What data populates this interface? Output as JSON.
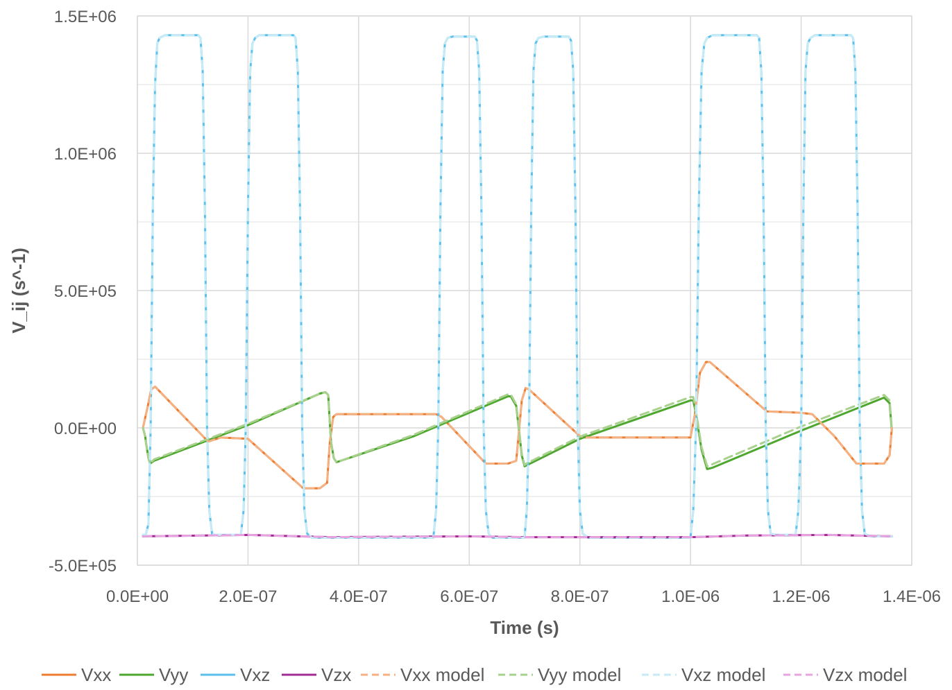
{
  "chart_data": {
    "type": "line",
    "title": "",
    "xlabel": "Time (s)",
    "ylabel": "V_ij (s^-1)",
    "xlim": [
      0,
      1.4e-06
    ],
    "ylim": [
      -500000,
      1500000
    ],
    "x_ticks": [
      "0.0E+00",
      "2.0E-07",
      "4.0E-07",
      "6.0E-07",
      "8.0E-07",
      "1.0E-06",
      "1.2E-06",
      "1.4E-06"
    ],
    "y_ticks": [
      "-5.0E+05",
      "0.0E+00",
      "5.0E+05",
      "1.0E+06",
      "1.5E+06"
    ],
    "grid": true,
    "legend_position": "bottom",
    "series": [
      {
        "name": "Vxx",
        "color": "#ED7D31",
        "dash": false,
        "x": [
          1e-08,
          1.9e-08,
          2.5e-08,
          3.2e-08,
          1.28e-07,
          1.5e-07,
          2e-07,
          3e-07,
          3.3e-07,
          3.43e-07,
          3.48e-07,
          3.54e-07,
          3.6e-07,
          4e-07,
          5e-07,
          5.4e-07,
          5.5e-07,
          6.3e-07,
          6.5e-07,
          6.7e-07,
          6.85e-07,
          6.95e-07,
          7.02e-07,
          7.08e-07,
          8e-07,
          8.1e-07,
          1e-06,
          1.008e-06,
          1.017e-06,
          1.028e-06,
          1.035e-06,
          1.138e-06,
          1.2e-06,
          1.22e-06,
          1.26e-06,
          1.3e-06,
          1.35e-06,
          1.36e-06,
          1.362e-06,
          1.364e-06
        ],
        "y": [
          0,
          80000,
          140000,
          150000,
          -50000,
          -35000,
          -40000,
          -220000,
          -220000,
          -200000,
          -50000,
          40000,
          50000,
          50000,
          50000,
          50000,
          40000,
          -130000,
          -130000,
          -130000,
          -120000,
          100000,
          145000,
          140000,
          -30000,
          -35000,
          -35000,
          50000,
          200000,
          240000,
          240000,
          60000,
          55000,
          50000,
          -30000,
          -130000,
          -130000,
          -100000,
          -50000,
          0
        ]
      },
      {
        "name": "Vyy",
        "color": "#4EA72E",
        "dash": false,
        "x": [
          1e-08,
          1.4e-08,
          1.6e-08,
          2e-08,
          2.3e-08,
          3e-08,
          2e-07,
          3.3e-07,
          3.4e-07,
          3.45e-07,
          3.5e-07,
          3.55e-07,
          3.6e-07,
          5e-07,
          6.7e-07,
          6.75e-07,
          6.85e-07,
          6.95e-07,
          7e-07,
          7.05e-07,
          8e-07,
          1e-06,
          1.005e-06,
          1.01e-06,
          1.02e-06,
          1.03e-06,
          1.04e-06,
          1.2e-06,
          1.35e-06,
          1.36e-06,
          1.362e-06,
          1.364e-06
        ],
        "y": [
          0,
          -30000,
          -60000,
          -110000,
          -130000,
          -120000,
          10000,
          125000,
          130000,
          120000,
          -50000,
          -110000,
          -125000,
          -30000,
          115000,
          115000,
          80000,
          -100000,
          -140000,
          -135000,
          -40000,
          100000,
          100000,
          50000,
          -80000,
          -150000,
          -145000,
          -10000,
          110000,
          90000,
          40000,
          -10000
        ]
      },
      {
        "name": "Vxz",
        "color": "#5BC0EB",
        "dash": false,
        "x": [
          1e-08,
          1.5e-08,
          2e-08,
          2.4e-08,
          2.8e-08,
          3.2e-08,
          3.6e-08,
          4e-08,
          5e-08,
          1.1e-07,
          1.14e-07,
          1.18e-07,
          1.22e-07,
          1.26e-07,
          1.3e-07,
          1.35e-07,
          1.4e-07,
          1.87e-07,
          1.92e-07,
          1.96e-07,
          2e-07,
          2.04e-07,
          2.08e-07,
          2.13e-07,
          2.2e-07,
          2.82e-07,
          2.86e-07,
          2.9e-07,
          2.94e-07,
          2.98e-07,
          3.02e-07,
          3.07e-07,
          3.15e-07,
          5.35e-07,
          5.4e-07,
          5.44e-07,
          5.48e-07,
          5.52e-07,
          5.56e-07,
          5.61e-07,
          5.7e-07,
          6.1e-07,
          6.14e-07,
          6.18e-07,
          6.22e-07,
          6.26e-07,
          6.3e-07,
          6.35e-07,
          6.42e-07,
          7e-07,
          7.04e-07,
          7.08e-07,
          7.12e-07,
          7.16e-07,
          7.2e-07,
          7.25e-07,
          7.35e-07,
          7.8e-07,
          7.84e-07,
          7.88e-07,
          7.92e-07,
          7.96e-07,
          8e-07,
          8.05e-07,
          8.15e-07,
          1e-06,
          1.005e-06,
          1.01e-06,
          1.015e-06,
          1.02e-06,
          1.025e-06,
          1.03e-06,
          1.04e-06,
          1.12e-06,
          1.124e-06,
          1.128e-06,
          1.132e-06,
          1.136e-06,
          1.14e-06,
          1.145e-06,
          1.155e-06,
          1.19e-06,
          1.195e-06,
          1.2e-06,
          1.204e-06,
          1.208e-06,
          1.212e-06,
          1.217e-06,
          1.225e-06,
          1.29e-06,
          1.294e-06,
          1.298e-06,
          1.302e-06,
          1.306e-06,
          1.31e-06,
          1.315e-06,
          1.325e-06,
          1.364e-06
        ],
        "y": [
          -390000,
          -390000,
          -350000,
          0,
          800000,
          1250000,
          1400000,
          1420000,
          1430000,
          1430000,
          1420000,
          1300000,
          800000,
          0,
          -300000,
          -385000,
          -390000,
          -390000,
          -300000,
          0,
          800000,
          1300000,
          1400000,
          1420000,
          1430000,
          1430000,
          1420000,
          1300000,
          800000,
          0,
          -300000,
          -385000,
          -400000,
          -400000,
          -300000,
          0,
          800000,
          1300000,
          1400000,
          1420000,
          1425000,
          1425000,
          1410000,
          1300000,
          800000,
          0,
          -300000,
          -385000,
          -400000,
          -400000,
          -300000,
          0,
          800000,
          1300000,
          1400000,
          1420000,
          1425000,
          1425000,
          1410000,
          1300000,
          800000,
          0,
          -300000,
          -385000,
          -400000,
          -400000,
          -300000,
          0,
          800000,
          1300000,
          1400000,
          1420000,
          1430000,
          1430000,
          1420000,
          1300000,
          800000,
          0,
          -300000,
          -385000,
          -390000,
          -390000,
          -300000,
          0,
          800000,
          1300000,
          1400000,
          1420000,
          1430000,
          1430000,
          1420000,
          1300000,
          800000,
          0,
          -300000,
          -385000,
          -395000,
          -395000
        ]
      },
      {
        "name": "Vzx",
        "color": "#A02B93",
        "dash": false,
        "x": [
          1e-08,
          2e-07,
          3.5e-07,
          6e-07,
          7e-07,
          1e-06,
          1.1e-06,
          1.25e-06,
          1.364e-06
        ],
        "y": [
          -395000,
          -390000,
          -398000,
          -395000,
          -398000,
          -398000,
          -392000,
          -390000,
          -395000
        ]
      },
      {
        "name": "Vxx model",
        "color": "#F4B183",
        "dash": true,
        "x": [
          1e-08,
          1.9e-08,
          2.5e-08,
          3.2e-08,
          1.28e-07,
          1.5e-07,
          2e-07,
          3e-07,
          3.3e-07,
          3.43e-07,
          3.48e-07,
          3.54e-07,
          3.6e-07,
          4e-07,
          5e-07,
          5.4e-07,
          5.5e-07,
          6.3e-07,
          6.5e-07,
          6.7e-07,
          6.85e-07,
          6.95e-07,
          7.02e-07,
          7.08e-07,
          8e-07,
          8.1e-07,
          1e-06,
          1.008e-06,
          1.017e-06,
          1.028e-06,
          1.035e-06,
          1.138e-06,
          1.2e-06,
          1.22e-06,
          1.26e-06,
          1.3e-06,
          1.35e-06,
          1.36e-06,
          1.362e-06,
          1.364e-06
        ],
        "y": [
          0,
          80000,
          140000,
          150000,
          -50000,
          -35000,
          -40000,
          -220000,
          -220000,
          -200000,
          -50000,
          40000,
          50000,
          50000,
          50000,
          50000,
          40000,
          -130000,
          -130000,
          -130000,
          -120000,
          100000,
          145000,
          140000,
          -30000,
          -35000,
          -35000,
          50000,
          200000,
          240000,
          240000,
          60000,
          55000,
          50000,
          -30000,
          -130000,
          -130000,
          -100000,
          -50000,
          0
        ]
      },
      {
        "name": "Vyy model",
        "color": "#A9D18E",
        "dash": true,
        "x": [
          1e-08,
          1.4e-08,
          1.6e-08,
          2e-08,
          2.3e-08,
          3e-08,
          2e-07,
          3.3e-07,
          3.4e-07,
          3.45e-07,
          3.5e-07,
          3.55e-07,
          3.6e-07,
          5e-07,
          6.7e-07,
          6.75e-07,
          6.85e-07,
          6.95e-07,
          7e-07,
          7.05e-07,
          8e-07,
          1e-06,
          1.005e-06,
          1.01e-06,
          1.02e-06,
          1.03e-06,
          1.04e-06,
          1.2e-06,
          1.35e-06,
          1.36e-06,
          1.362e-06,
          1.364e-06
        ],
        "y": [
          0,
          -30000,
          -60000,
          -110000,
          -130000,
          -115000,
          15000,
          125000,
          130000,
          120000,
          -50000,
          -110000,
          -125000,
          -25000,
          122000,
          122000,
          85000,
          -95000,
          -135000,
          -128000,
          -32000,
          112000,
          112000,
          60000,
          -70000,
          -140000,
          -132000,
          5000,
          120000,
          100000,
          50000,
          -5000
        ]
      },
      {
        "name": "Vxz model",
        "color": "#C6EBF7",
        "dash": true,
        "x": [
          1e-08,
          1.5e-08,
          2e-08,
          2.4e-08,
          2.8e-08,
          3.2e-08,
          3.6e-08,
          4e-08,
          5e-08,
          1.1e-07,
          1.14e-07,
          1.18e-07,
          1.22e-07,
          1.26e-07,
          1.3e-07,
          1.35e-07,
          1.4e-07,
          1.87e-07,
          1.92e-07,
          1.96e-07,
          2e-07,
          2.04e-07,
          2.08e-07,
          2.13e-07,
          2.2e-07,
          2.82e-07,
          2.86e-07,
          2.9e-07,
          2.94e-07,
          2.98e-07,
          3.02e-07,
          3.07e-07,
          3.15e-07,
          5.35e-07,
          5.4e-07,
          5.44e-07,
          5.48e-07,
          5.52e-07,
          5.56e-07,
          5.61e-07,
          5.7e-07,
          6.1e-07,
          6.14e-07,
          6.18e-07,
          6.22e-07,
          6.26e-07,
          6.3e-07,
          6.35e-07,
          6.42e-07,
          7e-07,
          7.04e-07,
          7.08e-07,
          7.12e-07,
          7.16e-07,
          7.2e-07,
          7.25e-07,
          7.35e-07,
          7.8e-07,
          7.84e-07,
          7.88e-07,
          7.92e-07,
          7.96e-07,
          8e-07,
          8.05e-07,
          8.15e-07,
          1e-06,
          1.005e-06,
          1.01e-06,
          1.015e-06,
          1.02e-06,
          1.025e-06,
          1.03e-06,
          1.04e-06,
          1.12e-06,
          1.124e-06,
          1.128e-06,
          1.132e-06,
          1.136e-06,
          1.14e-06,
          1.145e-06,
          1.155e-06,
          1.19e-06,
          1.195e-06,
          1.2e-06,
          1.204e-06,
          1.208e-06,
          1.212e-06,
          1.217e-06,
          1.225e-06,
          1.29e-06,
          1.294e-06,
          1.298e-06,
          1.302e-06,
          1.306e-06,
          1.31e-06,
          1.315e-06,
          1.325e-06,
          1.364e-06
        ],
        "y": [
          -390000,
          -390000,
          -350000,
          0,
          800000,
          1250000,
          1400000,
          1420000,
          1430000,
          1430000,
          1420000,
          1300000,
          800000,
          0,
          -300000,
          -385000,
          -390000,
          -390000,
          -300000,
          0,
          800000,
          1300000,
          1400000,
          1420000,
          1430000,
          1430000,
          1420000,
          1300000,
          800000,
          0,
          -300000,
          -385000,
          -400000,
          -400000,
          -300000,
          0,
          800000,
          1300000,
          1400000,
          1420000,
          1425000,
          1425000,
          1410000,
          1300000,
          800000,
          0,
          -300000,
          -385000,
          -400000,
          -400000,
          -300000,
          0,
          800000,
          1300000,
          1400000,
          1420000,
          1425000,
          1425000,
          1410000,
          1300000,
          800000,
          0,
          -300000,
          -385000,
          -400000,
          -400000,
          -300000,
          0,
          800000,
          1300000,
          1400000,
          1420000,
          1430000,
          1430000,
          1420000,
          1300000,
          800000,
          0,
          -300000,
          -385000,
          -390000,
          -390000,
          -300000,
          0,
          800000,
          1300000,
          1400000,
          1420000,
          1430000,
          1430000,
          1420000,
          1300000,
          800000,
          0,
          -300000,
          -385000,
          -395000,
          -395000
        ]
      },
      {
        "name": "Vzx model",
        "color": "#E6A3E0",
        "dash": true,
        "x": [
          1e-08,
          2e-07,
          3.5e-07,
          6e-07,
          7e-07,
          1e-06,
          1.1e-06,
          1.25e-06,
          1.364e-06
        ],
        "y": [
          -395000,
          -390000,
          -398000,
          -395000,
          -398000,
          -398000,
          -392000,
          -390000,
          -395000
        ]
      }
    ]
  }
}
